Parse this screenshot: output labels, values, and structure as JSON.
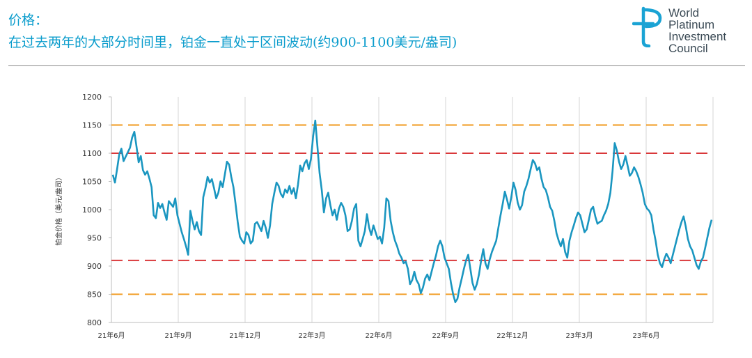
{
  "header": {
    "title": "价格：",
    "subtitle": "在过去两年的大部分时间里，铂金一直处于区间波动(约900-1100美元/盎司)"
  },
  "logo": {
    "lines": [
      "World",
      "Platinum",
      "Investment",
      "Council"
    ],
    "icon": "wpic-tp-monogram-icon",
    "color": "#1aa3d4"
  },
  "chart_data": {
    "type": "line",
    "ylabel": "铂金价格（美元/盎司）",
    "ylim": [
      800,
      1200
    ],
    "yticks": [
      800,
      850,
      900,
      950,
      1000,
      1050,
      1100,
      1150,
      1200
    ],
    "xticks": [
      "21年6月",
      "21年9月",
      "21年12月",
      "22年3月",
      "22年6月",
      "22年9月",
      "22年12月",
      "23年3月",
      "23年6月"
    ],
    "grid": "vertical",
    "series": [
      {
        "color": "#1a96c0",
        "values": [
          1062,
          1048,
          1072,
          1098,
          1108,
          1086,
          1094,
          1102,
          1110,
          1128,
          1138,
          1112,
          1084,
          1095,
          1070,
          1062,
          1068,
          1055,
          1040,
          990,
          985,
          1012,
          1003,
          1010,
          995,
          982,
          1015,
          1010,
          1005,
          1020,
          990,
          975,
          960,
          948,
          935,
          920,
          998,
          980,
          965,
          978,
          962,
          955,
          1022,
          1038,
          1058,
          1048,
          1054,
          1038,
          1020,
          1030,
          1050,
          1040,
          1062,
          1085,
          1080,
          1058,
          1040,
          1010,
          978,
          952,
          945,
          940,
          960,
          955,
          940,
          945,
          975,
          978,
          970,
          962,
          980,
          968,
          950,
          972,
          1010,
          1030,
          1048,
          1042,
          1028,
          1022,
          1036,
          1030,
          1042,
          1028,
          1038,
          1020,
          1045,
          1078,
          1068,
          1082,
          1088,
          1072,
          1090,
          1130,
          1158,
          1112,
          1065,
          1035,
          995,
          1020,
          1030,
          1008,
          990,
          1000,
          982,
          1002,
          1012,
          1005,
          990,
          962,
          965,
          980,
          1002,
          1010,
          945,
          935,
          948,
          962,
          992,
          968,
          955,
          972,
          960,
          948,
          952,
          940,
          968,
          1020,
          1015,
          980,
          960,
          945,
          935,
          922,
          915,
          905,
          908,
          895,
          868,
          875,
          890,
          875,
          868,
          852,
          862,
          878,
          885,
          875,
          890,
          905,
          918,
          935,
          945,
          935,
          915,
          905,
          895,
          870,
          850,
          836,
          842,
          862,
          878,
          895,
          910,
          920,
          895,
          870,
          858,
          868,
          885,
          910,
          930,
          905,
          895,
          912,
          925,
          935,
          945,
          968,
          990,
          1010,
          1032,
          1018,
          1002,
          1022,
          1048,
          1035,
          1012,
          1000,
          1008,
          1032,
          1042,
          1055,
          1072,
          1088,
          1082,
          1070,
          1075,
          1055,
          1040,
          1035,
          1022,
          1005,
          998,
          980,
          958,
          945,
          935,
          948,
          925,
          915,
          945,
          960,
          972,
          985,
          995,
          990,
          975,
          960,
          965,
          982,
          1000,
          1005,
          988,
          975,
          978,
          980,
          990,
          998,
          1010,
          1030,
          1068,
          1118,
          1105,
          1085,
          1072,
          1080,
          1095,
          1078,
          1060,
          1065,
          1075,
          1068,
          1058,
          1045,
          1030,
          1010,
          1002,
          998,
          990,
          965,
          945,
          920,
          905,
          898,
          912,
          922,
          915,
          905,
          920,
          935,
          950,
          965,
          978,
          988,
          970,
          948,
          935,
          928,
          915,
          902,
          895,
          908,
          915,
          932,
          950,
          968,
          982
        ]
      }
    ],
    "reference_lines": [
      {
        "value": 1150,
        "color": "#f09a1c",
        "dash": "long"
      },
      {
        "value": 1100,
        "color": "#d9383a",
        "dash": "long"
      },
      {
        "value": 910,
        "color": "#d9383a",
        "dash": "long"
      },
      {
        "value": 850,
        "color": "#f09a1c",
        "dash": "long"
      }
    ]
  }
}
